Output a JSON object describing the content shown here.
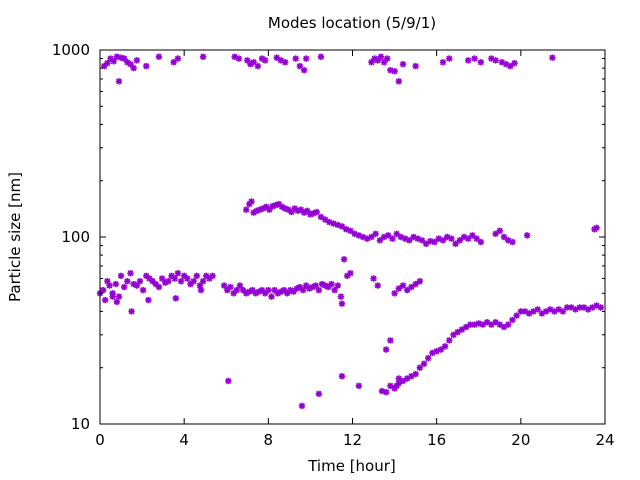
{
  "chart_data": {
    "type": "scatter",
    "title": "Modes location (5/9/1)",
    "xlabel": "Time [hour]",
    "ylabel": "Particle size [nm]",
    "xlim": [
      0,
      24
    ],
    "ylim": [
      10,
      1000
    ],
    "y_scale": "log",
    "x_ticks": [
      0,
      4,
      8,
      12,
      16,
      20,
      24
    ],
    "x_tick_labels": [
      "0",
      "4",
      "8",
      "12",
      "16",
      "20",
      "24"
    ],
    "y_ticks": [
      10,
      100,
      1000
    ],
    "y_tick_labels": [
      "10",
      "100",
      "1000"
    ],
    "grid": false,
    "legend": "none",
    "marker": "star",
    "color": "#9400d3",
    "series": [
      {
        "points": [
          [
            0.2,
            820
          ],
          [
            0.35,
            850
          ],
          [
            0.5,
            900
          ],
          [
            0.65,
            870
          ],
          [
            0.8,
            920
          ],
          [
            0.9,
            680
          ],
          [
            1.0,
            910
          ],
          [
            1.15,
            900
          ],
          [
            1.3,
            860
          ],
          [
            1.45,
            840
          ],
          [
            1.6,
            800
          ],
          [
            1.75,
            880
          ],
          [
            2.2,
            820
          ],
          [
            2.8,
            920
          ],
          [
            3.5,
            860
          ],
          [
            3.7,
            900
          ],
          [
            4.9,
            920
          ],
          [
            6.4,
            920
          ],
          [
            6.6,
            900
          ],
          [
            7.0,
            880
          ],
          [
            7.15,
            840
          ],
          [
            7.3,
            860
          ],
          [
            7.5,
            820
          ],
          [
            7.7,
            900
          ],
          [
            7.85,
            880
          ],
          [
            8.4,
            910
          ],
          [
            8.6,
            880
          ],
          [
            8.8,
            860
          ],
          [
            9.3,
            900
          ],
          [
            9.5,
            820
          ],
          [
            9.7,
            780
          ],
          [
            9.8,
            900
          ],
          [
            10.5,
            920
          ],
          [
            12.9,
            860
          ],
          [
            13.05,
            900
          ],
          [
            13.2,
            880
          ],
          [
            13.35,
            920
          ],
          [
            13.5,
            860
          ],
          [
            13.65,
            900
          ],
          [
            13.8,
            780
          ],
          [
            14.0,
            770
          ],
          [
            14.2,
            680
          ],
          [
            14.4,
            840
          ],
          [
            15.0,
            820
          ],
          [
            16.3,
            860
          ],
          [
            16.6,
            900
          ],
          [
            17.5,
            880
          ],
          [
            17.8,
            900
          ],
          [
            18.1,
            860
          ],
          [
            18.6,
            900
          ],
          [
            18.8,
            880
          ],
          [
            19.1,
            860
          ],
          [
            19.3,
            840
          ],
          [
            19.5,
            820
          ],
          [
            19.7,
            850
          ],
          [
            21.5,
            910
          ]
        ]
      },
      {
        "points": [
          [
            6.95,
            140
          ],
          [
            7.1,
            150
          ],
          [
            7.2,
            155
          ],
          [
            7.3,
            135
          ],
          [
            7.45,
            138
          ],
          [
            7.6,
            140
          ],
          [
            7.75,
            142
          ],
          [
            7.9,
            145
          ],
          [
            8.05,
            140
          ],
          [
            8.2,
            146
          ],
          [
            8.35,
            148
          ],
          [
            8.5,
            150
          ],
          [
            8.65,
            145
          ],
          [
            8.8,
            142
          ],
          [
            8.95,
            140
          ],
          [
            9.1,
            136
          ],
          [
            9.25,
            142
          ],
          [
            9.4,
            138
          ],
          [
            9.55,
            140
          ],
          [
            9.7,
            135
          ],
          [
            9.85,
            138
          ],
          [
            10.0,
            132
          ],
          [
            10.15,
            134
          ],
          [
            10.3,
            136
          ],
          [
            10.5,
            128
          ],
          [
            10.7,
            124
          ],
          [
            10.9,
            120
          ],
          [
            11.1,
            118
          ],
          [
            11.3,
            116
          ],
          [
            11.5,
            114
          ],
          [
            11.7,
            110
          ],
          [
            11.9,
            108
          ],
          [
            12.1,
            104
          ],
          [
            12.3,
            102
          ],
          [
            12.5,
            100
          ],
          [
            12.7,
            98
          ],
          [
            12.9,
            100
          ],
          [
            13.1,
            104
          ],
          [
            13.3,
            96
          ],
          [
            13.5,
            100
          ],
          [
            13.7,
            102
          ],
          [
            13.9,
            98
          ],
          [
            14.1,
            104
          ],
          [
            14.3,
            100
          ],
          [
            14.5,
            98
          ],
          [
            14.7,
            96
          ],
          [
            14.9,
            100
          ],
          [
            15.1,
            98
          ],
          [
            15.3,
            96
          ],
          [
            15.5,
            92
          ],
          [
            15.7,
            95
          ],
          [
            15.9,
            94
          ],
          [
            16.1,
            98
          ],
          [
            16.3,
            96
          ],
          [
            16.5,
            100
          ],
          [
            16.7,
            98
          ],
          [
            16.9,
            92
          ],
          [
            17.1,
            96
          ],
          [
            17.3,
            100
          ],
          [
            17.5,
            98
          ],
          [
            17.7,
            102
          ],
          [
            17.9,
            98
          ],
          [
            18.1,
            94
          ],
          [
            18.8,
            104
          ],
          [
            19.0,
            108
          ],
          [
            19.2,
            100
          ],
          [
            19.4,
            96
          ],
          [
            19.6,
            94
          ],
          [
            20.3,
            102
          ],
          [
            23.5,
            110
          ],
          [
            23.6,
            112
          ]
        ]
      },
      {
        "points": [
          [
            0.0,
            50
          ],
          [
            0.15,
            52
          ],
          [
            0.25,
            46
          ],
          [
            0.35,
            58
          ],
          [
            0.45,
            55
          ],
          [
            0.6,
            50
          ],
          [
            0.75,
            56
          ],
          [
            0.9,
            48
          ],
          [
            1.0,
            62
          ],
          [
            1.15,
            54
          ],
          [
            1.3,
            58
          ],
          [
            1.45,
            64
          ],
          [
            1.6,
            56
          ],
          [
            1.75,
            55
          ],
          [
            1.9,
            58
          ],
          [
            2.05,
            52
          ],
          [
            2.2,
            62
          ],
          [
            2.35,
            60
          ],
          [
            2.5,
            58
          ],
          [
            2.65,
            56
          ],
          [
            2.8,
            54
          ],
          [
            2.95,
            60
          ],
          [
            3.1,
            57
          ],
          [
            3.25,
            58
          ],
          [
            3.4,
            62
          ],
          [
            3.55,
            60
          ],
          [
            3.7,
            64
          ],
          [
            3.85,
            58
          ],
          [
            4.0,
            62
          ],
          [
            4.15,
            60
          ],
          [
            4.3,
            56
          ],
          [
            4.45,
            58
          ],
          [
            4.6,
            62
          ],
          [
            4.75,
            55
          ],
          [
            4.9,
            58
          ],
          [
            5.05,
            62
          ],
          [
            5.2,
            60
          ],
          [
            5.35,
            62
          ],
          [
            5.9,
            55
          ],
          [
            6.05,
            52
          ],
          [
            6.2,
            54
          ],
          [
            6.35,
            50
          ],
          [
            6.5,
            52
          ],
          [
            6.65,
            55
          ],
          [
            6.8,
            52
          ],
          [
            6.95,
            50
          ],
          [
            7.1,
            51
          ],
          [
            7.25,
            52
          ],
          [
            7.4,
            50
          ],
          [
            7.55,
            51
          ],
          [
            7.7,
            52
          ],
          [
            7.85,
            50
          ],
          [
            8.0,
            52
          ],
          [
            8.15,
            48
          ],
          [
            8.3,
            52
          ],
          [
            8.45,
            50
          ],
          [
            8.6,
            51
          ],
          [
            8.75,
            52
          ],
          [
            8.9,
            50
          ],
          [
            9.05,
            52
          ],
          [
            9.2,
            51
          ],
          [
            9.35,
            53
          ],
          [
            9.5,
            54
          ],
          [
            9.65,
            52
          ],
          [
            9.8,
            55
          ],
          [
            9.95,
            53
          ],
          [
            10.1,
            54
          ],
          [
            10.25,
            55
          ],
          [
            10.4,
            52
          ],
          [
            10.55,
            56
          ],
          [
            10.7,
            55
          ],
          [
            10.85,
            54
          ],
          [
            11.0,
            56
          ],
          [
            11.15,
            52
          ],
          [
            11.3,
            55
          ],
          [
            11.45,
            48
          ],
          [
            11.6,
            76
          ],
          [
            11.75,
            62
          ],
          [
            11.9,
            64
          ],
          [
            0.6,
            48
          ],
          [
            0.8,
            45
          ],
          [
            1.5,
            40
          ],
          [
            2.3,
            46
          ],
          [
            3.6,
            47
          ],
          [
            4.8,
            52
          ],
          [
            11.5,
            44
          ],
          [
            13.0,
            60
          ],
          [
            13.2,
            55
          ],
          [
            14.0,
            50
          ],
          [
            14.2,
            53
          ],
          [
            14.4,
            55
          ],
          [
            14.6,
            52
          ],
          [
            14.8,
            54
          ],
          [
            15.0,
            56
          ],
          [
            15.2,
            58
          ]
        ]
      },
      {
        "points": [
          [
            13.4,
            15
          ],
          [
            13.6,
            14.8
          ],
          [
            13.8,
            16
          ],
          [
            14.0,
            15.5
          ],
          [
            14.2,
            16.5
          ],
          [
            14.4,
            17
          ],
          [
            14.6,
            17.5
          ],
          [
            14.8,
            18
          ],
          [
            15.0,
            18.5
          ],
          [
            15.2,
            20
          ],
          [
            15.4,
            21
          ],
          [
            15.6,
            22.5
          ],
          [
            15.8,
            24
          ],
          [
            16.0,
            24.5
          ],
          [
            16.2,
            25
          ],
          [
            16.4,
            26
          ],
          [
            16.6,
            28
          ],
          [
            16.8,
            30
          ],
          [
            17.0,
            31
          ],
          [
            17.2,
            32
          ],
          [
            17.4,
            33
          ],
          [
            17.6,
            34
          ],
          [
            17.8,
            34
          ],
          [
            18.0,
            34.5
          ],
          [
            18.2,
            34
          ],
          [
            18.4,
            35
          ],
          [
            18.6,
            34
          ],
          [
            18.8,
            35
          ],
          [
            19.0,
            34
          ],
          [
            19.2,
            33
          ],
          [
            19.4,
            34
          ],
          [
            19.6,
            36
          ],
          [
            19.8,
            38
          ],
          [
            20.0,
            40
          ],
          [
            20.2,
            40
          ],
          [
            20.4,
            39
          ],
          [
            20.6,
            40
          ],
          [
            20.8,
            41
          ],
          [
            21.0,
            39
          ],
          [
            21.2,
            40
          ],
          [
            21.4,
            41
          ],
          [
            21.6,
            40
          ],
          [
            21.8,
            41
          ],
          [
            22.0,
            40
          ],
          [
            22.2,
            42
          ],
          [
            22.4,
            42
          ],
          [
            22.6,
            41
          ],
          [
            22.8,
            42
          ],
          [
            23.0,
            42
          ],
          [
            23.2,
            41
          ],
          [
            23.4,
            42
          ],
          [
            23.6,
            43
          ],
          [
            23.8,
            42
          ],
          [
            13.6,
            25
          ],
          [
            13.8,
            28
          ],
          [
            6.1,
            17
          ],
          [
            9.6,
            12.5
          ],
          [
            10.4,
            14.5
          ],
          [
            11.5,
            18
          ],
          [
            12.3,
            16
          ],
          [
            14.2,
            17.5
          ],
          [
            14.1,
            16
          ]
        ]
      }
    ]
  }
}
